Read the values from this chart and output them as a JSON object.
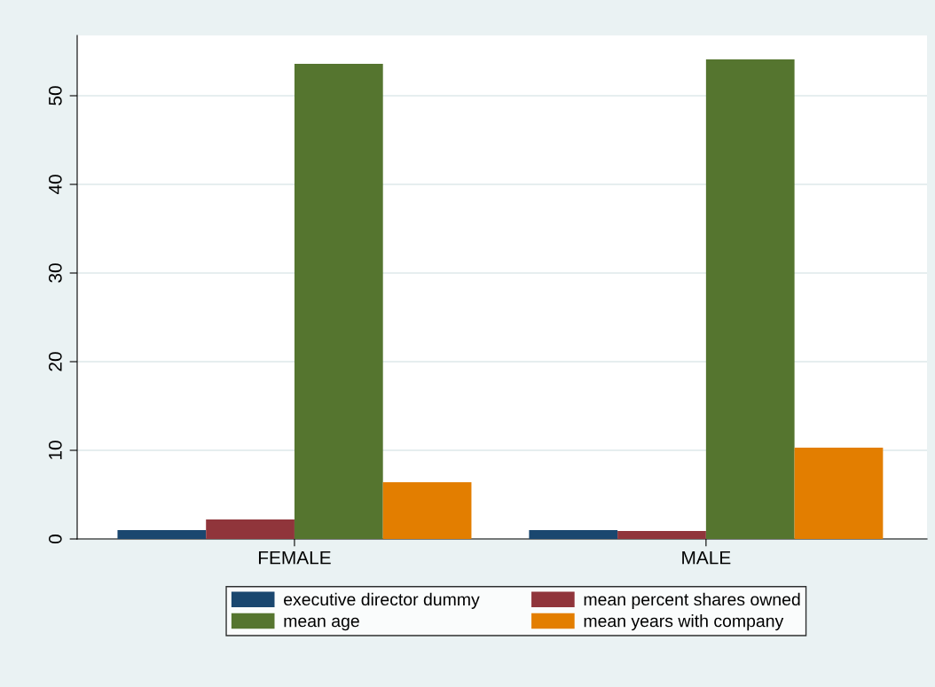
{
  "chart_data": {
    "type": "bar",
    "categories": [
      "FEMALE",
      "MALE"
    ],
    "series": [
      {
        "name": "executive director dummy",
        "color": "#1a476f",
        "values": [
          1.0,
          1.0
        ]
      },
      {
        "name": "mean percent shares owned",
        "color": "#90353b",
        "values": [
          2.2,
          0.9
        ]
      },
      {
        "name": "mean age",
        "color": "#55752f",
        "values": [
          53.6,
          54.1
        ]
      },
      {
        "name": "mean years with company",
        "color": "#e37e00",
        "values": [
          6.4,
          10.3
        ]
      }
    ],
    "ylim": [
      0,
      56.8
    ],
    "yticks": [
      0,
      10,
      20,
      30,
      40,
      50
    ],
    "grid": "y",
    "legend": "bottom"
  }
}
